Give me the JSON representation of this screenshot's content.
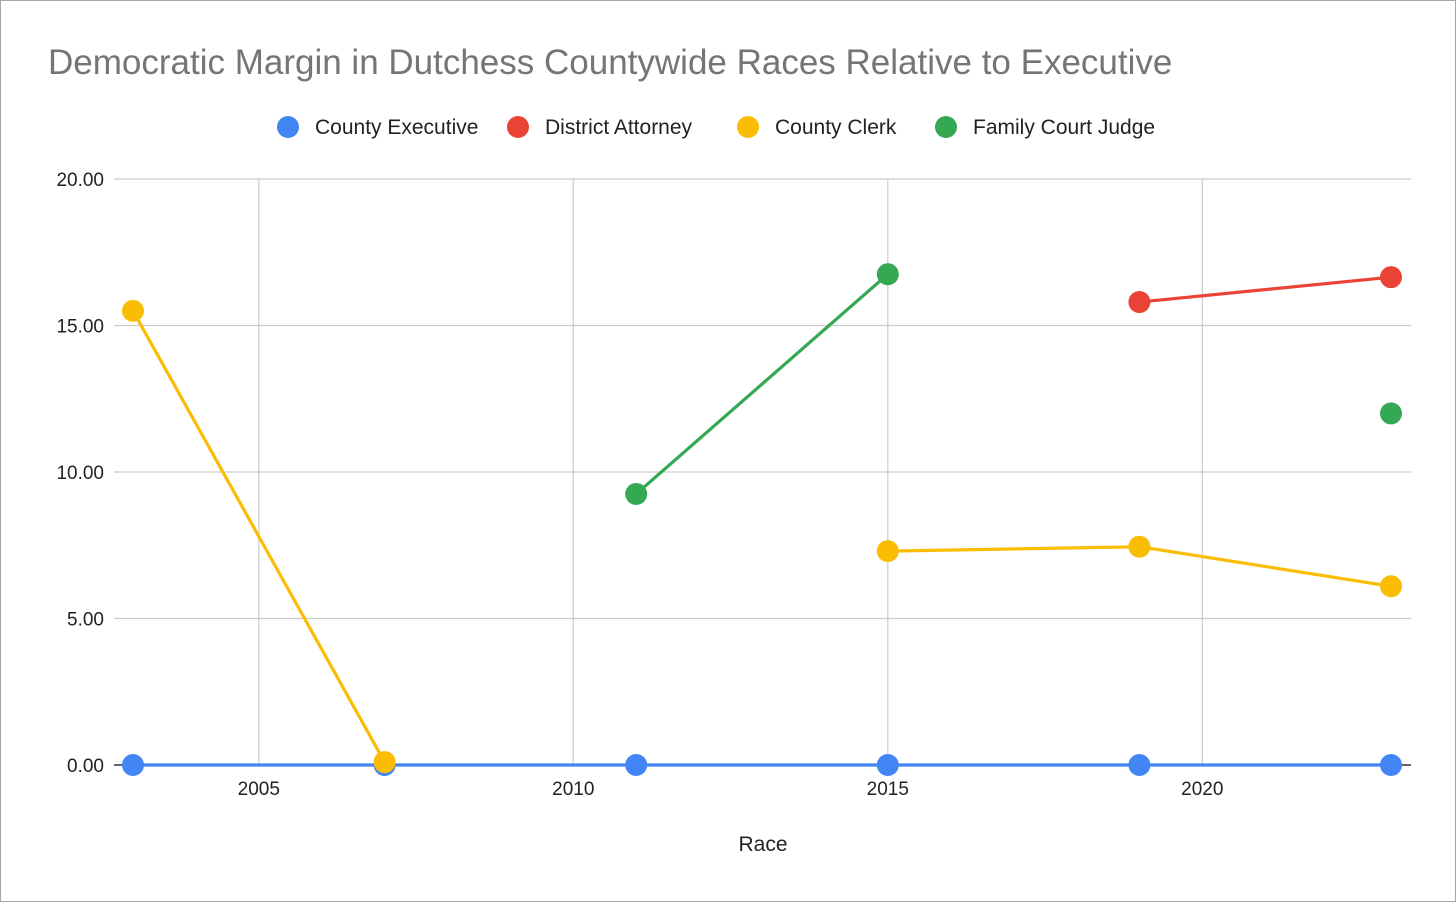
{
  "chart_data": {
    "type": "line",
    "title": "Democratic Margin in Dutchess Countywide Races Relative to Executive",
    "xlabel": "Race",
    "ylabel": "",
    "xlim": [
      2003,
      2023
    ],
    "ylim": [
      0,
      20
    ],
    "x_ticks": [
      2005,
      2010,
      2015,
      2020
    ],
    "x_tick_labels": [
      "2005",
      "2010",
      "2015",
      "2020"
    ],
    "y_ticks": [
      0,
      5,
      10,
      15,
      20
    ],
    "y_tick_labels": [
      "0.00",
      "5.00",
      "10.00",
      "15.00",
      "20.00"
    ],
    "grid": true,
    "legend_position": "top",
    "series": [
      {
        "name": "County Executive",
        "color": "#4285f4",
        "points": [
          [
            2003,
            0
          ],
          [
            2007,
            0
          ],
          [
            2011,
            0
          ],
          [
            2015,
            0
          ],
          [
            2019,
            0
          ],
          [
            2023,
            0
          ]
        ]
      },
      {
        "name": "District Attorney",
        "color": "#ea4335",
        "points": [
          [
            2019,
            15.8
          ],
          [
            2023,
            16.65
          ]
        ]
      },
      {
        "name": "County Clerk",
        "color": "#fbbc04",
        "points": [
          [
            2003,
            15.5
          ],
          [
            2007,
            0.1
          ],
          [
            2015,
            7.3
          ],
          [
            2019,
            7.45
          ],
          [
            2023,
            6.1
          ]
        ]
      },
      {
        "name": "Family Court Judge",
        "color": "#34a853",
        "points": [
          [
            2011,
            9.25
          ],
          [
            2015,
            16.75
          ],
          [
            2023,
            12.0
          ]
        ]
      }
    ]
  }
}
